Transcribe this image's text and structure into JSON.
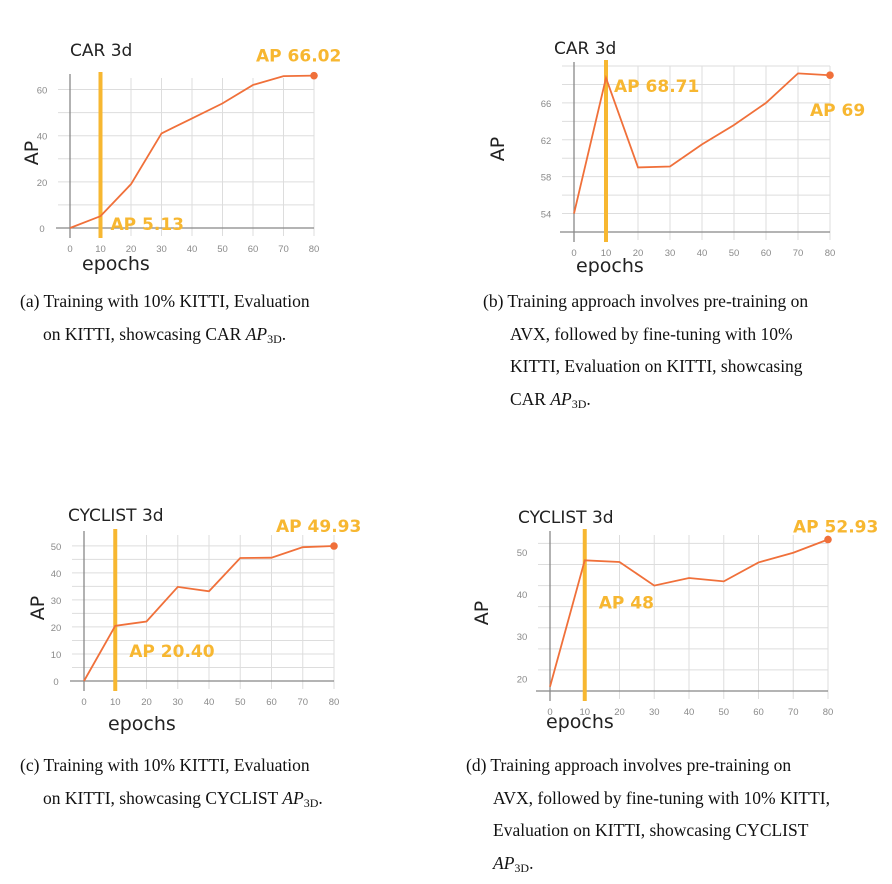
{
  "colors": {
    "line": "#f0703a",
    "highlight": "#f7b731",
    "grid": "#dddddd",
    "axis": "#555555"
  },
  "chart_data": [
    {
      "type": "line",
      "title": "CAR 3d",
      "xlabel": "epochs",
      "ylabel": "AP",
      "x": [
        0,
        10,
        20,
        30,
        40,
        50,
        60,
        70,
        80
      ],
      "series": [
        {
          "values": [
            0,
            5.13,
            19,
            41,
            47.5,
            54,
            62,
            65.8,
            66.02
          ]
        }
      ],
      "xlim": [
        0,
        80
      ],
      "ylim": [
        0,
        65
      ],
      "xticks": [
        0,
        10,
        20,
        30,
        40,
        50,
        60,
        70,
        80
      ],
      "yticks": [
        0,
        20,
        40,
        60
      ],
      "vline_x": 10,
      "annotations": [
        {
          "text": "AP 66.02",
          "x": 80,
          "y": 66.02,
          "dx": -58,
          "dy": -20
        },
        {
          "text": "AP 5.13",
          "x": 10,
          "y": 5.13,
          "dx": 10,
          "dy": 8
        }
      ]
    },
    {
      "type": "line",
      "title": "CAR 3d",
      "xlabel": "epochs",
      "ylabel": "AP",
      "x": [
        0,
        10,
        20,
        30,
        40,
        50,
        60,
        70,
        80
      ],
      "series": [
        {
          "values": [
            54,
            68.71,
            59,
            59.1,
            61.5,
            63.6,
            66,
            69.2,
            69
          ]
        }
      ],
      "xlim": [
        0,
        80
      ],
      "ylim": [
        52,
        70
      ],
      "xticks": [
        0,
        10,
        20,
        30,
        40,
        50,
        60,
        70,
        80
      ],
      "yticks": [
        54,
        58,
        62,
        66
      ],
      "vline_x": 10,
      "annotations": [
        {
          "text": "AP 68.71",
          "x": 10,
          "y": 68.71,
          "dx": 8,
          "dy": 8
        },
        {
          "text": "AP 69",
          "x": 80,
          "y": 69,
          "dx": -20,
          "dy": 35
        }
      ]
    },
    {
      "type": "line",
      "title": "CYCLIST 3d",
      "xlabel": "epochs",
      "ylabel": "AP",
      "x": [
        0,
        10,
        20,
        30,
        40,
        50,
        60,
        70,
        80
      ],
      "series": [
        {
          "values": [
            0,
            20.4,
            22,
            34.8,
            33.2,
            45.5,
            45.6,
            49.5,
            49.93
          ]
        }
      ],
      "xlim": [
        0,
        80
      ],
      "ylim": [
        0,
        54
      ],
      "xticks": [
        0,
        10,
        20,
        30,
        40,
        50,
        60,
        70,
        80
      ],
      "yticks": [
        0,
        10,
        20,
        30,
        40,
        50
      ],
      "vline_x": 10,
      "annotations": [
        {
          "text": "AP 49.93",
          "x": 80,
          "y": 49.93,
          "dx": -58,
          "dy": -20
        },
        {
          "text": "AP 20.40",
          "x": 10,
          "y": 20.4,
          "dx": 14,
          "dy": 25
        }
      ]
    },
    {
      "type": "line",
      "title": "CYCLIST 3d",
      "xlabel": "epochs",
      "ylabel": "AP",
      "x": [
        0,
        10,
        20,
        30,
        40,
        50,
        60,
        70,
        80
      ],
      "series": [
        {
          "values": [
            18,
            48,
            47.6,
            42,
            43.8,
            43,
            47.5,
            49.8,
            52.93
          ]
        }
      ],
      "xlim": [
        0,
        80
      ],
      "ylim": [
        17,
        54
      ],
      "xticks": [
        0,
        10,
        20,
        30,
        40,
        50,
        60,
        70,
        80
      ],
      "yticks": [
        20,
        30,
        40,
        50
      ],
      "vline_x": 10,
      "annotations": [
        {
          "text": "AP 52.93",
          "x": 80,
          "y": 52.93,
          "dx": -35,
          "dy": -13
        },
        {
          "text": "AP 48",
          "x": 10,
          "y": 48,
          "dx": 14,
          "dy": 42
        }
      ]
    }
  ],
  "captions": {
    "a": {
      "label": "(a)",
      "line1": "Training with 10% KITTI, Evaluation",
      "line2": "on KITTI, showcasing CAR ",
      "math_base": "AP",
      "math_sub": "3D",
      "end": "."
    },
    "b": {
      "label": "(b)",
      "line1": "Training approach involves pre-training on",
      "line2": "AVX, followed by fine-tuning with 10%",
      "line3": "KITTI, Evaluation on KITTI, showcasing",
      "line4": "CAR ",
      "math_base": "AP",
      "math_sub": "3D",
      "end": "."
    },
    "c": {
      "label": "(c)",
      "line1": "Training with 10% KITTI, Evaluation",
      "line2": "on KITTI, showcasing CYCLIST ",
      "math_base": "AP",
      "math_sub": "3D",
      "end": "."
    },
    "d": {
      "label": "(d)",
      "line1": "Training approach involves pre-training on",
      "line2": "AVX, followed by fine-tuning with 10% KITTI,",
      "line3": "Evaluation on KITTI, showcasing CYCLIST",
      "math_base": "AP",
      "math_sub": "3D",
      "end": "."
    }
  }
}
